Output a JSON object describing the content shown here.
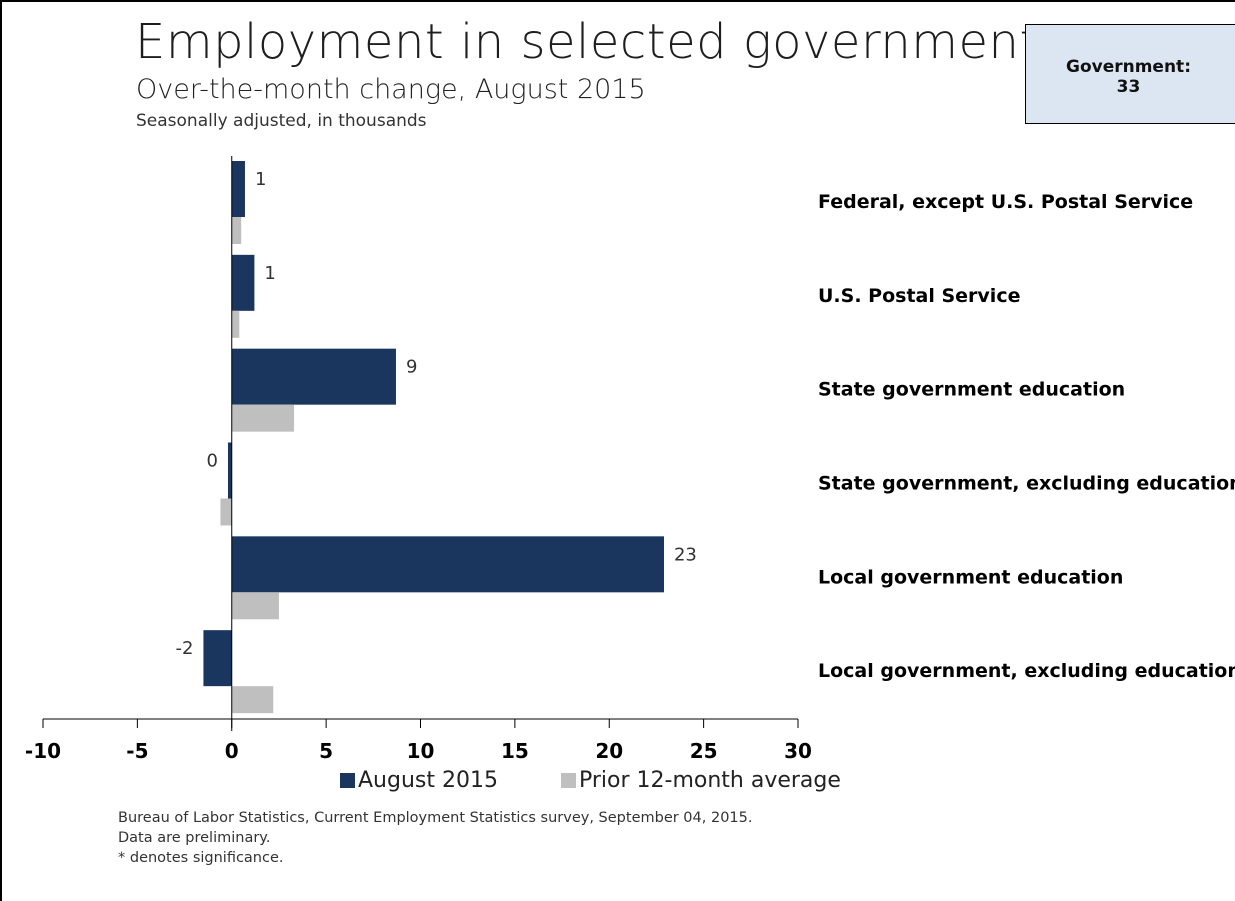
{
  "title": "Employment in selected government",
  "subtitle": "Over-the-month change, August 2015",
  "subsubtitle": "Seasonally adjusted, in thousands",
  "callout": {
    "label": "Government:",
    "value": "33"
  },
  "colors": {
    "current": "#1a355e",
    "prior": "#bfbfbf",
    "callout_bg": "#dce6f2"
  },
  "chart_data": {
    "type": "bar",
    "orientation": "horizontal",
    "title": "Employment in selected government",
    "subtitle": "Over-the-month change, August 2015",
    "unit_note": "Seasonally adjusted, in thousands",
    "categories": [
      "Federal, except U.S. Postal Service",
      "U.S. Postal Service",
      "State government education",
      "State government, excluding education",
      "Local government education",
      "Local government, excluding education"
    ],
    "series": [
      {
        "name": "August 2015",
        "values": [
          0.7,
          1.2,
          8.7,
          -0.2,
          22.9,
          -1.5
        ],
        "data_labels": [
          "1",
          "1",
          "9",
          "0",
          "23",
          "-2"
        ]
      },
      {
        "name": "Prior 12-month average",
        "values": [
          0.5,
          0.4,
          3.3,
          -0.6,
          2.5,
          2.2
        ]
      }
    ],
    "xlim": [
      -10,
      30
    ],
    "xticks": [
      "-10",
      "-5",
      "0",
      "5",
      "10",
      "15",
      "20",
      "25",
      "30"
    ],
    "grid": false,
    "legend": "bottom"
  },
  "footnotes": [
    "Bureau of Labor Statistics, Current Employment Statistics survey, September 04, 2015.",
    "Data are preliminary.",
    "* denotes significance."
  ]
}
